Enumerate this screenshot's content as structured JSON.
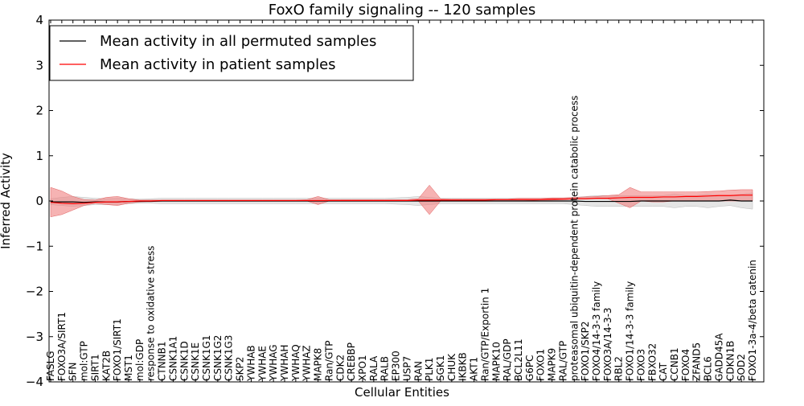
{
  "chart_data": {
    "type": "line",
    "title": "FoxO family signaling -- 120 samples",
    "xlabel": "Cellular Entities",
    "ylabel": "Inferred Activity",
    "ylim": [
      -4,
      4
    ],
    "yticks": [
      -4,
      -3,
      -2,
      -1,
      0,
      1,
      2,
      3,
      4
    ],
    "ytick_labels": [
      "−4",
      "−3",
      "−2",
      "−1",
      "0",
      "1",
      "2",
      "3",
      "4"
    ],
    "legend_position": "top-left",
    "colors": {
      "permuted": "#000000",
      "patient": "#ff0000",
      "patient_band": "#f08080",
      "permuted_band": "#d3d3d3"
    },
    "categories": [
      "FASLG",
      "FOXO3A/SIRT1",
      "SFN",
      "mol:GTP",
      "SIRT1",
      "KAT2B",
      "FOXO1/SIRT1",
      "MST1",
      "mol:GDP",
      "response to oxidative stress",
      "CTNNB1",
      "CSNK1A1",
      "CSNK1D",
      "CSNK1E",
      "CSNK1G1",
      "CSNK1G2",
      "CSNK1G3",
      "SKP2",
      "YWHAB",
      "YWHAE",
      "YWHAG",
      "YWHAH",
      "YWHAQ",
      "YWHAZ",
      "MAPK8",
      "Ran/GTP",
      "CDK2",
      "CREBBP",
      "XPO1",
      "RALA",
      "RALB",
      "EP300",
      "USP7",
      "RAN",
      "PLK1",
      "SGK1",
      "CHUK",
      "IKBKB",
      "AKT1",
      "Ran/GTP/Exportin 1",
      "MAPK10",
      "RAL/GDP",
      "BCL2L11",
      "G6PC",
      "FOXO1",
      "MAPK9",
      "RAL/GTP",
      "proteasomal ubiquitin-dependent protein catabolic process",
      "FOXO1/SKP2",
      "FOXO4/14-3-3 family",
      "FOXO3A/14-3-3",
      "RBL2",
      "FOXO1/14-3-3 family",
      "FOXO3",
      "FBXO32",
      "CAT",
      "CCNB1",
      "FOXO4",
      "ZFAND5",
      "BCL6",
      "GADD45A",
      "CDKN1B",
      "SOD2",
      "FOXO1-3a-4/beta catenin"
    ],
    "series": [
      {
        "name": "Mean activity in all permuted samples",
        "values": [
          -0.02,
          -0.02,
          -0.02,
          -0.03,
          -0.02,
          -0.02,
          -0.02,
          -0.01,
          -0.01,
          -0.01,
          0.0,
          0.0,
          0.0,
          0.0,
          0.0,
          0.0,
          0.0,
          0.0,
          0.0,
          0.0,
          0.0,
          0.0,
          0.0,
          0.0,
          0.0,
          0.0,
          0.0,
          0.0,
          0.0,
          0.0,
          0.0,
          0.0,
          0.0,
          0.0,
          0.0,
          0.0,
          0.0,
          0.0,
          0.0,
          0.0,
          0.0,
          0.0,
          0.0,
          0.0,
          0.0,
          0.0,
          0.0,
          0.0,
          -0.01,
          -0.01,
          -0.01,
          -0.01,
          -0.01,
          0.0,
          0.0,
          0.0,
          0.0,
          0.0,
          0.0,
          0.0,
          0.0,
          0.02,
          0.0,
          0.0
        ],
        "lower": [
          -0.08,
          -0.1,
          -0.12,
          -0.1,
          -0.08,
          -0.08,
          -0.08,
          -0.06,
          -0.05,
          -0.05,
          -0.06,
          -0.06,
          -0.06,
          -0.06,
          -0.06,
          -0.06,
          -0.06,
          -0.06,
          -0.06,
          -0.06,
          -0.06,
          -0.06,
          -0.06,
          -0.06,
          -0.06,
          -0.06,
          -0.06,
          -0.06,
          -0.06,
          -0.06,
          -0.06,
          -0.07,
          -0.08,
          -0.1,
          -0.08,
          -0.06,
          -0.06,
          -0.06,
          -0.06,
          -0.06,
          -0.06,
          -0.06,
          -0.06,
          -0.06,
          -0.06,
          -0.06,
          -0.06,
          -0.08,
          -0.1,
          -0.12,
          -0.12,
          -0.12,
          -0.12,
          -0.12,
          -0.12,
          -0.12,
          -0.15,
          -0.12,
          -0.12,
          -0.15,
          -0.12,
          -0.1,
          -0.15,
          -0.18
        ],
        "upper": [
          0.05,
          0.08,
          0.1,
          0.08,
          0.06,
          0.05,
          0.06,
          0.05,
          0.04,
          0.05,
          0.06,
          0.06,
          0.06,
          0.06,
          0.06,
          0.06,
          0.06,
          0.06,
          0.06,
          0.06,
          0.06,
          0.06,
          0.06,
          0.06,
          0.06,
          0.06,
          0.06,
          0.06,
          0.06,
          0.06,
          0.06,
          0.07,
          0.08,
          0.1,
          0.08,
          0.06,
          0.06,
          0.06,
          0.06,
          0.06,
          0.06,
          0.06,
          0.06,
          0.06,
          0.06,
          0.06,
          0.06,
          0.08,
          0.1,
          0.12,
          0.12,
          0.12,
          0.12,
          0.12,
          0.12,
          0.12,
          0.15,
          0.12,
          0.12,
          0.15,
          0.12,
          0.12,
          0.15,
          0.18
        ]
      },
      {
        "name": "Mean activity in patient samples",
        "values": [
          -0.03,
          -0.05,
          -0.06,
          -0.05,
          -0.03,
          -0.02,
          -0.02,
          -0.01,
          0.0,
          0.0,
          0.01,
          0.01,
          0.01,
          0.01,
          0.01,
          0.01,
          0.01,
          0.01,
          0.01,
          0.01,
          0.01,
          0.01,
          0.01,
          0.01,
          0.01,
          0.01,
          0.01,
          0.01,
          0.01,
          0.01,
          0.01,
          0.01,
          0.01,
          0.02,
          0.02,
          0.02,
          0.02,
          0.02,
          0.02,
          0.02,
          0.03,
          0.03,
          0.03,
          0.03,
          0.03,
          0.04,
          0.04,
          0.05,
          0.05,
          0.06,
          0.06,
          0.07,
          0.08,
          0.08,
          0.08,
          0.09,
          0.09,
          0.1,
          0.1,
          0.11,
          0.12,
          0.12,
          0.13,
          0.13
        ],
        "lower": [
          -0.35,
          -0.3,
          -0.2,
          -0.1,
          -0.05,
          -0.08,
          -0.1,
          -0.05,
          -0.02,
          -0.01,
          0.0,
          0.0,
          0.0,
          0.0,
          0.0,
          0.0,
          0.0,
          0.0,
          0.0,
          0.0,
          0.0,
          0.0,
          0.0,
          0.0,
          -0.08,
          0.0,
          0.0,
          0.0,
          0.0,
          0.0,
          0.0,
          0.0,
          0.0,
          0.0,
          -0.3,
          0.0,
          0.0,
          0.0,
          0.0,
          0.0,
          0.0,
          0.0,
          0.0,
          0.01,
          0.02,
          0.02,
          0.03,
          0.04,
          0.04,
          0.05,
          0.05,
          -0.05,
          -0.15,
          0.0,
          -0.02,
          -0.02,
          0.0,
          0.0,
          0.0,
          0.0,
          0.0,
          0.0,
          0.0,
          0.0
        ],
        "upper": [
          0.3,
          0.22,
          0.1,
          0.03,
          0.02,
          0.08,
          0.1,
          0.05,
          0.02,
          0.02,
          0.02,
          0.02,
          0.02,
          0.02,
          0.02,
          0.02,
          0.02,
          0.02,
          0.02,
          0.02,
          0.02,
          0.02,
          0.02,
          0.03,
          0.1,
          0.03,
          0.03,
          0.03,
          0.03,
          0.03,
          0.03,
          0.03,
          0.03,
          0.05,
          0.35,
          0.05,
          0.04,
          0.04,
          0.04,
          0.04,
          0.04,
          0.04,
          0.06,
          0.06,
          0.06,
          0.07,
          0.07,
          0.08,
          0.09,
          0.1,
          0.12,
          0.14,
          0.3,
          0.2,
          0.2,
          0.2,
          0.2,
          0.2,
          0.2,
          0.21,
          0.22,
          0.24,
          0.25,
          0.25
        ]
      }
    ]
  }
}
